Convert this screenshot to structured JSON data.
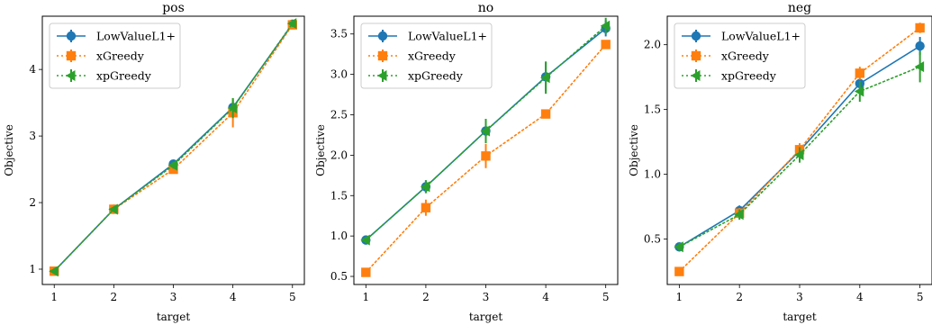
{
  "chart_data": [
    {
      "type": "line",
      "title": "pos",
      "xlabel": "target",
      "ylabel": "Objective",
      "x": [
        1,
        2,
        3,
        4,
        5
      ],
      "xlim": [
        0.8,
        5.2
      ],
      "ylim": [
        0.77,
        4.8
      ],
      "yticks": [
        1,
        2,
        3,
        4
      ],
      "legend_position": "upper-left",
      "grid": false,
      "series": [
        {
          "name": "LowValueL1+",
          "color": "#1f77b4",
          "marker": "circle",
          "linestyle": "solid",
          "values": [
            0.97,
            1.9,
            2.58,
            3.43,
            4.68
          ],
          "errors": [
            0.04,
            0.04,
            0.05,
            0.12,
            0.05
          ]
        },
        {
          "name": "xGreedy",
          "color": "#ff7f0e",
          "marker": "square",
          "linestyle": "dotted",
          "values": [
            0.97,
            1.9,
            2.5,
            3.35,
            4.67
          ],
          "errors": [
            0.04,
            0.04,
            0.06,
            0.22,
            0.05
          ]
        },
        {
          "name": "xpGreedy",
          "color": "#2ca02c",
          "marker": "triangle-left",
          "linestyle": "dotted",
          "values": [
            0.97,
            1.9,
            2.56,
            3.42,
            4.69
          ],
          "errors": [
            0.04,
            0.04,
            0.05,
            0.15,
            0.05
          ]
        }
      ]
    },
    {
      "type": "line",
      "title": "no",
      "xlabel": "target",
      "ylabel": "Objective",
      "x": [
        1,
        2,
        3,
        4,
        5
      ],
      "xlim": [
        0.8,
        5.2
      ],
      "ylim": [
        0.4,
        3.72
      ],
      "yticks": [
        "0.5",
        "1.0",
        "1.5",
        "2.0",
        "2.5",
        "3.0",
        "3.5"
      ],
      "legend_position": "upper-left",
      "grid": false,
      "series": [
        {
          "name": "LowValueL1+",
          "color": "#1f77b4",
          "marker": "circle",
          "linestyle": "solid",
          "values": [
            0.95,
            1.61,
            2.3,
            2.97,
            3.57
          ],
          "errors": [
            0.03,
            0.08,
            0.15,
            0.18,
            0.1
          ]
        },
        {
          "name": "xGreedy",
          "color": "#ff7f0e",
          "marker": "square",
          "linestyle": "dotted",
          "values": [
            0.55,
            1.35,
            1.99,
            2.51,
            3.37
          ],
          "errors": [
            0.04,
            0.1,
            0.15,
            0.04,
            0.04
          ]
        },
        {
          "name": "xpGreedy",
          "color": "#2ca02c",
          "marker": "triangle-left",
          "linestyle": "dotted",
          "values": [
            0.95,
            1.61,
            2.3,
            2.96,
            3.6
          ],
          "errors": [
            0.03,
            0.08,
            0.15,
            0.2,
            0.1
          ]
        }
      ]
    },
    {
      "type": "line",
      "title": "neg",
      "xlabel": "target",
      "ylabel": "Objective",
      "x": [
        1,
        2,
        3,
        4,
        5
      ],
      "xlim": [
        0.8,
        5.2
      ],
      "ylim": [
        0.15,
        2.22
      ],
      "yticks": [
        "0.5",
        "1.0",
        "1.5",
        "2.0"
      ],
      "legend_position": "upper-left",
      "grid": false,
      "series": [
        {
          "name": "LowValueL1+",
          "color": "#1f77b4",
          "marker": "circle",
          "linestyle": "solid",
          "values": [
            0.44,
            0.72,
            1.18,
            1.7,
            1.99
          ],
          "errors": [
            0.03,
            0.04,
            0.05,
            0.06,
            0.07
          ]
        },
        {
          "name": "xGreedy",
          "color": "#ff7f0e",
          "marker": "square",
          "linestyle": "dotted",
          "values": [
            0.25,
            0.7,
            1.19,
            1.78,
            2.13
          ],
          "errors": [
            0.02,
            0.04,
            0.05,
            0.05,
            0.04
          ]
        },
        {
          "name": "xpGreedy",
          "color": "#2ca02c",
          "marker": "triangle-left",
          "linestyle": "dotted",
          "values": [
            0.44,
            0.69,
            1.15,
            1.64,
            1.83
          ],
          "errors": [
            0.03,
            0.04,
            0.06,
            0.08,
            0.12
          ]
        }
      ]
    }
  ]
}
